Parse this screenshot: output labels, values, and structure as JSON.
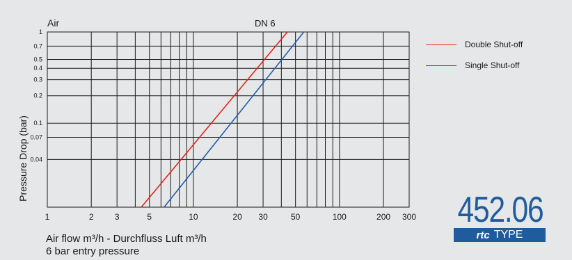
{
  "chart_data": {
    "type": "line",
    "title": "Air",
    "annotation": "DN 6",
    "ylabel": "Pressure Drop (bar)",
    "xlabel_line1": "Air flow m³/h - Durchfluss Luft m³/h",
    "xlabel_line2": "6 bar entry pressure",
    "x_scale": "log",
    "y_scale": "log",
    "xlim": [
      1,
      300
    ],
    "ylim": [
      0.012,
      1
    ],
    "x_ticks": [
      1,
      2,
      3,
      5,
      10,
      20,
      30,
      50,
      100,
      200,
      300
    ],
    "x_tick_labels": [
      "1",
      "2",
      "3",
      "5",
      "10",
      "20",
      "30",
      "50",
      "100",
      "200",
      "300"
    ],
    "y_ticks": [
      0.04,
      0.07,
      0.1,
      0.2,
      0.3,
      0.4,
      0.5,
      0.7,
      1
    ],
    "y_tick_labels": [
      "0.04",
      "0.07",
      "0.1",
      "0.2",
      "0.3",
      "0.4",
      "0.5",
      "0.7",
      "1"
    ],
    "grid": true,
    "legend_position": "right",
    "series": [
      {
        "name": "Double Shut-off",
        "color": "#e0251b",
        "x": [
          4.4,
          44
        ],
        "y": [
          0.012,
          1
        ]
      },
      {
        "name": "Single Shut-off",
        "color": "#1f5ca8",
        "x": [
          6.3,
          57
        ],
        "y": [
          0.012,
          1
        ]
      }
    ]
  },
  "brand": {
    "model": "452.06",
    "logo_text": "rtc",
    "type_label": "TYPE",
    "color": "#1f5c9e"
  }
}
